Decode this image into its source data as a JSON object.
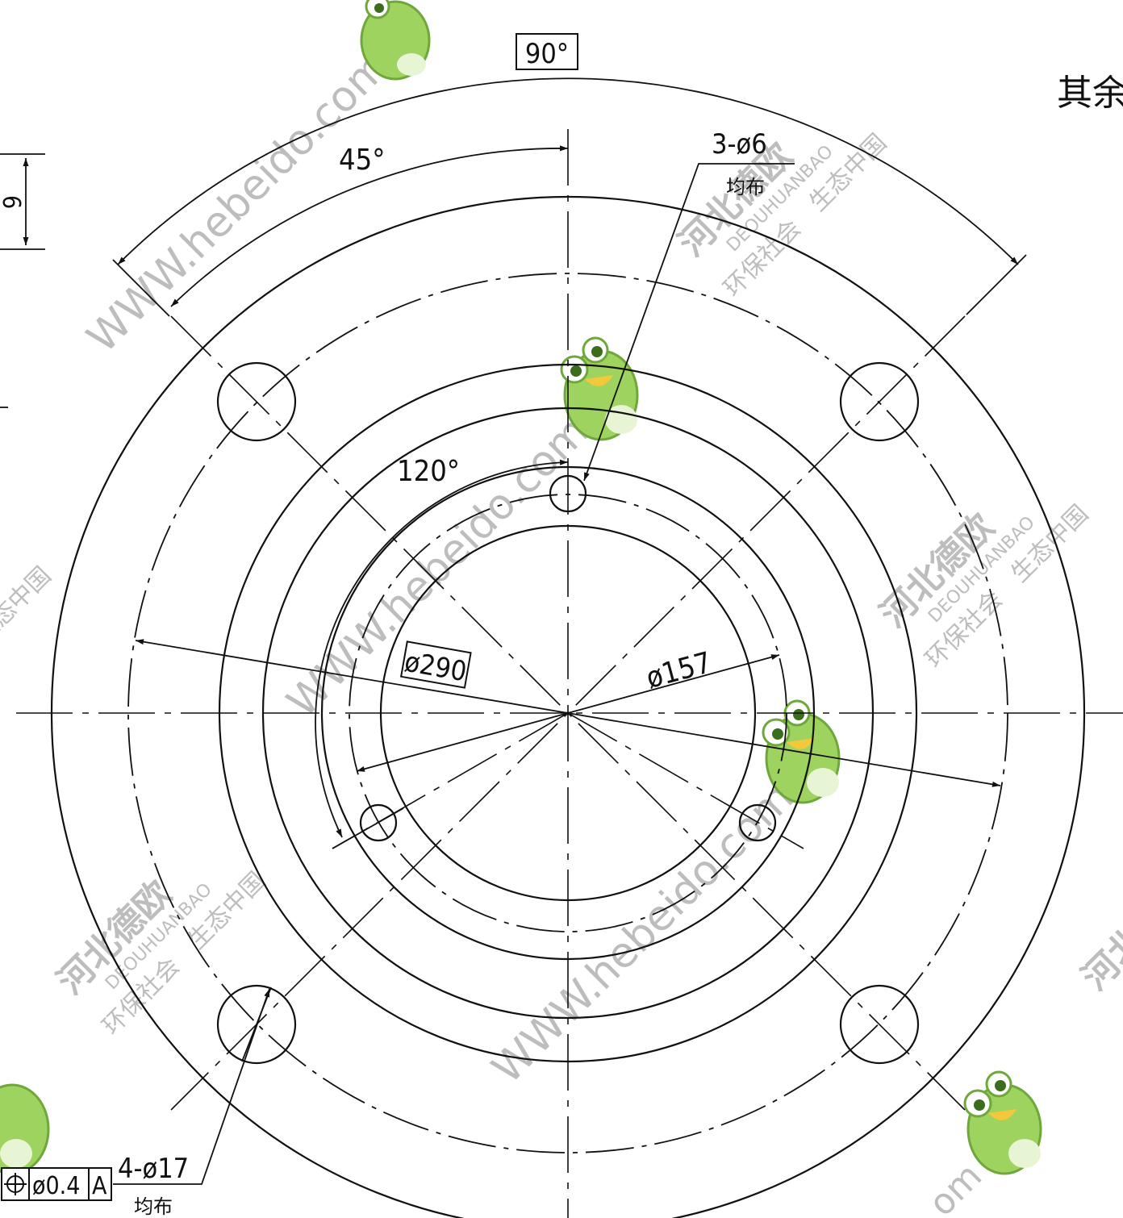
{
  "drawing": {
    "basic_angle_top": "90°",
    "angle_45": "45°",
    "angle_120": "120°",
    "dia_290": "ø290",
    "dia_157": "ø157",
    "small_holes_label": "3-ø6",
    "small_holes_note": "均布",
    "bolt_holes_label": "4-ø17",
    "bolt_holes_note": "均布",
    "tolerance": {
      "symbol": "⊕",
      "value": "ø0.4",
      "datum": "A"
    },
    "surface_note": "其余",
    "left_dim_fragment": "6"
  },
  "watermarks": {
    "url": "WWW.hebeido.com",
    "company": "河北德欧",
    "pinyin": "DEOUHUANBAO",
    "slogan1": "环保社会",
    "slogan2": "生态中国",
    "fragment_com": "om"
  },
  "colors": {
    "line": "#111111",
    "watermark": "#b9b9b9",
    "frog_green": "#8fd14f"
  }
}
